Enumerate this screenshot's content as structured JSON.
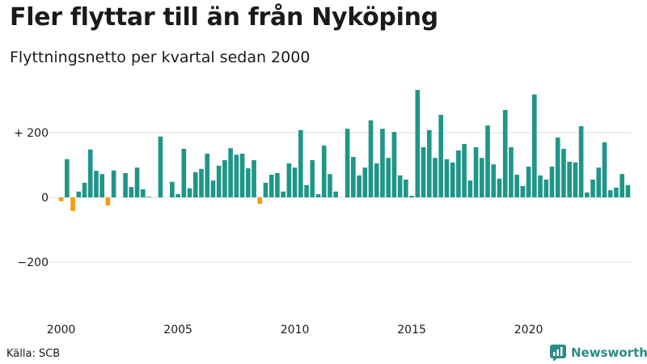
{
  "title": "Fler flyttar till än från Nyköping",
  "subtitle": "Flyttningsnetto per kvartal sedan 2000",
  "source": "Källa: SCB",
  "brand": "Newsworthy",
  "colors": {
    "positive": "#1f9688",
    "negative": "#f39c12",
    "grid": "#dddddd",
    "brand": "#2a8c85"
  },
  "chart_data": {
    "type": "bar",
    "title": "Fler flyttar till än från Nyköping",
    "subtitle": "Flyttningsnetto per kvartal sedan 2000",
    "xlabel": "",
    "ylabel": "",
    "ylim": [
      -350,
      350
    ],
    "yticks": [
      {
        "value": 200,
        "label": "+ 200"
      },
      {
        "value": 0,
        "label": "0"
      },
      {
        "value": -200,
        "label": "−200"
      }
    ],
    "xticks": [
      {
        "label": "2000",
        "index": 0
      },
      {
        "label": "2005",
        "index": 20
      },
      {
        "label": "2010",
        "index": 40
      },
      {
        "label": "2015",
        "index": 60
      },
      {
        "label": "2020",
        "index": 80
      }
    ],
    "start_year": 2000,
    "values": [
      -12,
      118,
      -42,
      18,
      45,
      148,
      82,
      72,
      -25,
      83,
      0,
      75,
      32,
      92,
      25,
      2,
      0,
      188,
      0,
      48,
      10,
      150,
      28,
      78,
      88,
      135,
      52,
      98,
      115,
      152,
      132,
      135,
      90,
      115,
      -20,
      45,
      70,
      75,
      18,
      105,
      92,
      208,
      38,
      115,
      10,
      160,
      72,
      18,
      0,
      212,
      125,
      68,
      92,
      238,
      105,
      212,
      122,
      202,
      68,
      55,
      5,
      332,
      155,
      208,
      122,
      255,
      118,
      108,
      145,
      165,
      52,
      155,
      122,
      222,
      102,
      58,
      270,
      155,
      70,
      35,
      95,
      318,
      68,
      55,
      95,
      185,
      150,
      110,
      108,
      220,
      15,
      55,
      92,
      170,
      22,
      30,
      72,
      38
    ]
  }
}
